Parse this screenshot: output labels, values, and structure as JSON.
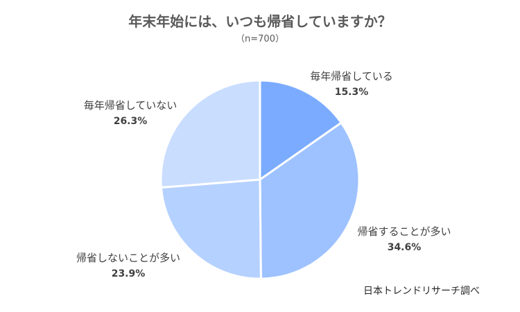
{
  "chart_data": {
    "type": "pie",
    "title": "年末年始には、いつも帰省していますか？",
    "subtitle": "（n=700）",
    "categories": [
      "毎年帰省している",
      "帰省することが多い",
      "帰省しないことが多い",
      "毎年帰省していない"
    ],
    "values": [
      15.3,
      34.6,
      23.9,
      26.3
    ],
    "value_labels": [
      "15.3%",
      "34.6%",
      "23.9%",
      "26.3%"
    ],
    "colors": [
      "#7aabff",
      "#9ec2ff",
      "#b5d1ff",
      "#c9ddff"
    ],
    "start_angle_deg": 0,
    "direction": "clockwise",
    "legend": "none"
  },
  "source": "日本トレンドリサーチ調べ"
}
